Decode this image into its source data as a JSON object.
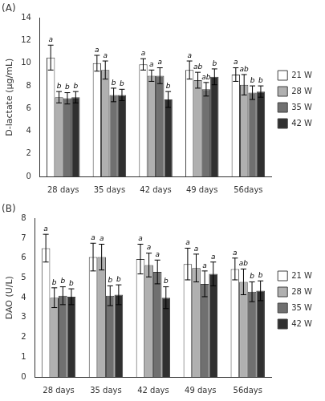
{
  "chart_data": [
    {
      "type": "bar",
      "title": "(A)",
      "ylabel": "D-lactate (μg/mL)",
      "categories": [
        "28 days",
        "35 days",
        "42 days",
        "49 days",
        "56days"
      ],
      "series": [
        {
          "name": "21 W",
          "color": "#ffffff",
          "values": [
            10.5,
            10.0,
            9.9,
            9.4,
            9.0
          ],
          "errors": [
            1.1,
            0.7,
            0.5,
            0.8,
            0.6
          ],
          "letters": [
            "a",
            "a",
            "a",
            "a",
            "a"
          ]
        },
        {
          "name": "28 W",
          "color": "#b0b0b0",
          "values": [
            7.0,
            9.4,
            8.9,
            8.5,
            8.1
          ],
          "errors": [
            0.5,
            0.8,
            0.5,
            0.7,
            0.9
          ],
          "letters": [
            "b",
            "a",
            "a",
            "ab",
            "ab"
          ]
        },
        {
          "name": "35 W",
          "color": "#707070",
          "values": [
            6.9,
            7.2,
            8.9,
            7.7,
            7.4
          ],
          "errors": [
            0.5,
            0.6,
            0.7,
            0.6,
            0.6
          ],
          "letters": [
            "b",
            "b",
            "a",
            "ab",
            "b"
          ]
        },
        {
          "name": "42 W",
          "color": "#303030",
          "values": [
            7.0,
            7.2,
            6.8,
            8.8,
            7.5
          ],
          "errors": [
            0.5,
            0.5,
            0.7,
            0.7,
            0.5
          ],
          "letters": [
            "b",
            "b",
            "b",
            "b",
            "b"
          ]
        }
      ],
      "ylim": [
        0,
        14
      ],
      "yticks": [
        0,
        2,
        4,
        6,
        8,
        10,
        12,
        14
      ],
      "grid": false,
      "legend": "right"
    },
    {
      "type": "bar",
      "title": "(B)",
      "ylabel": "DAO (U/L)",
      "categories": [
        "28 days",
        "35 days",
        "42 days",
        "49 days",
        "56days"
      ],
      "series": [
        {
          "name": "21 W",
          "color": "#ffffff",
          "values": [
            6.5,
            6.05,
            5.95,
            5.7,
            5.45
          ],
          "errors": [
            0.7,
            0.7,
            0.75,
            0.8,
            0.55
          ],
          "letters": [
            "a",
            "a",
            "a",
            "a",
            "a"
          ]
        },
        {
          "name": "28 W",
          "color": "#b0b0b0",
          "values": [
            4.0,
            6.05,
            5.65,
            5.5,
            4.8
          ],
          "errors": [
            0.5,
            0.65,
            0.6,
            0.7,
            0.65
          ],
          "letters": [
            "b",
            "a",
            "a",
            "a",
            "ab"
          ]
        },
        {
          "name": "35 W",
          "color": "#707070",
          "values": [
            4.1,
            4.1,
            5.3,
            4.7,
            4.3
          ],
          "errors": [
            0.45,
            0.5,
            0.6,
            0.65,
            0.5
          ],
          "letters": [
            "b",
            "b",
            "a",
            "a",
            "b"
          ]
        },
        {
          "name": "42 W",
          "color": "#303030",
          "values": [
            4.05,
            4.15,
            4.0,
            5.2,
            4.35
          ],
          "errors": [
            0.4,
            0.5,
            0.55,
            0.6,
            0.5
          ],
          "letters": [
            "b",
            "b",
            "b",
            "a",
            "b"
          ]
        }
      ],
      "ylim": [
        0,
        8
      ],
      "yticks": [
        0,
        1,
        2,
        3,
        4,
        5,
        6,
        7,
        8
      ],
      "grid": false,
      "legend": "right"
    }
  ]
}
